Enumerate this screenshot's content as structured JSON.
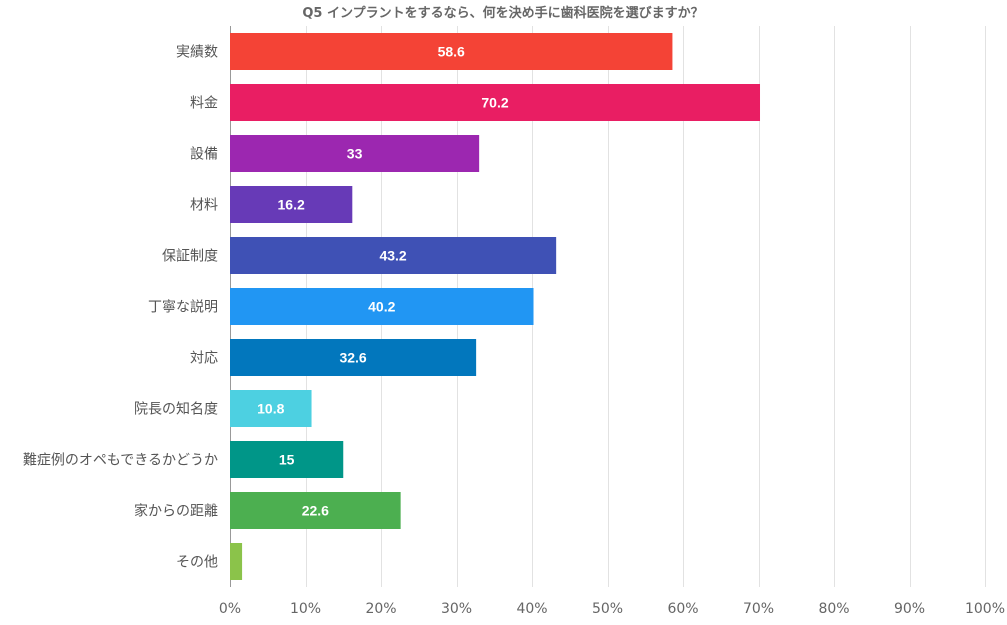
{
  "chart_data": {
    "type": "bar",
    "orientation": "horizontal",
    "title": "Q5 インプラントをするなら、何を決め手に歯科医院を選びますか？",
    "categories": [
      "実績数",
      "料金",
      "設備",
      "材料",
      "保証制度",
      "丁寧な説明",
      "対応",
      "院長の知名度",
      "難症例のオペもできるかどうか",
      "家からの距離",
      "その他"
    ],
    "values": [
      58.6,
      70.2,
      33,
      16.2,
      43.2,
      40.2,
      32.6,
      10.8,
      15,
      22.6,
      1.6
    ],
    "value_labels": [
      "58.6",
      "70.2",
      "33",
      "16.2",
      "43.2",
      "40.2",
      "32.6",
      "10.8",
      "15",
      "22.6",
      ""
    ],
    "colors": [
      "#f44336",
      "#e91e63",
      "#9c27b0",
      "#673ab7",
      "#3f51b5",
      "#2196f3",
      "#0277bd",
      "#4dd0e1",
      "#009688",
      "#4caf50",
      "#8bc34a"
    ],
    "xlim": [
      0,
      100
    ],
    "x_ticks": [
      0,
      10,
      20,
      30,
      40,
      50,
      60,
      70,
      80,
      90,
      100
    ],
    "x_tick_labels": [
      "0%",
      "10%",
      "20%",
      "30%",
      "40%",
      "50%",
      "60%",
      "70%",
      "80%",
      "90%",
      "100%"
    ],
    "xlabel": "",
    "ylabel": "",
    "grid": true,
    "legend": "none"
  }
}
